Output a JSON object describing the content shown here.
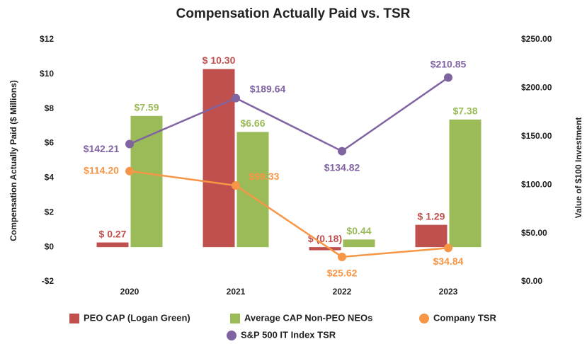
{
  "chart_data": {
    "type": "bar-line",
    "title": "Compensation Actually Paid vs. TSR",
    "y_label": "Compensation Actually Paid ($ Millions)",
    "y2_label": "Value of $100 Investment",
    "categories": [
      "2020",
      "2021",
      "2022",
      "2023"
    ],
    "ylim": [
      -2,
      12
    ],
    "yticks": [
      {
        "value": -2,
        "label": "-$2"
      },
      {
        "value": 0,
        "label": "$0"
      },
      {
        "value": 2,
        "label": "$2"
      },
      {
        "value": 4,
        "label": "$4"
      },
      {
        "value": 6,
        "label": "$6"
      },
      {
        "value": 8,
        "label": "$8"
      },
      {
        "value": 10,
        "label": "$10"
      },
      {
        "value": 12,
        "label": "$12"
      }
    ],
    "y2lim": [
      0,
      250
    ],
    "y2ticks": [
      {
        "value": 0,
        "label": "$0.00"
      },
      {
        "value": 50,
        "label": "$50.00"
      },
      {
        "value": 100,
        "label": "$100.00"
      },
      {
        "value": 150,
        "label": "$150.00"
      },
      {
        "value": 200,
        "label": "$200.00"
      },
      {
        "value": 250,
        "label": "$250.00"
      }
    ],
    "grid": false,
    "series": [
      {
        "name": "PEO CAP (Logan Green)",
        "kind": "bar",
        "color": "#c0504d",
        "values": [
          0.27,
          10.3,
          -0.18,
          1.29
        ],
        "value_labels": [
          "$ 0.27",
          "$ 10.30",
          "$ (0.18)",
          "$ 1.29"
        ]
      },
      {
        "name": "Average CAP Non-PEO NEOs",
        "kind": "bar",
        "color": "#9bbb59",
        "values": [
          7.59,
          6.66,
          0.44,
          7.38
        ],
        "value_labels": [
          "$7.59",
          "$6.66",
          "$0.44",
          "$7.38"
        ]
      },
      {
        "name": "Company TSR",
        "kind": "line",
        "axis": "y2",
        "color": "#f79646",
        "values": [
          114.2,
          99.33,
          25.62,
          34.84
        ],
        "value_labels": [
          "$114.20",
          "$99.33",
          "$25.62",
          "$34.84"
        ]
      },
      {
        "name": "S&P 500 IT Index TSR",
        "kind": "line",
        "axis": "y2",
        "color": "#8064a2",
        "values": [
          142.21,
          189.64,
          134.82,
          210.85
        ],
        "value_labels": [
          "$142.21",
          "$189.64",
          "$134.82",
          "$210.85"
        ]
      }
    ]
  }
}
